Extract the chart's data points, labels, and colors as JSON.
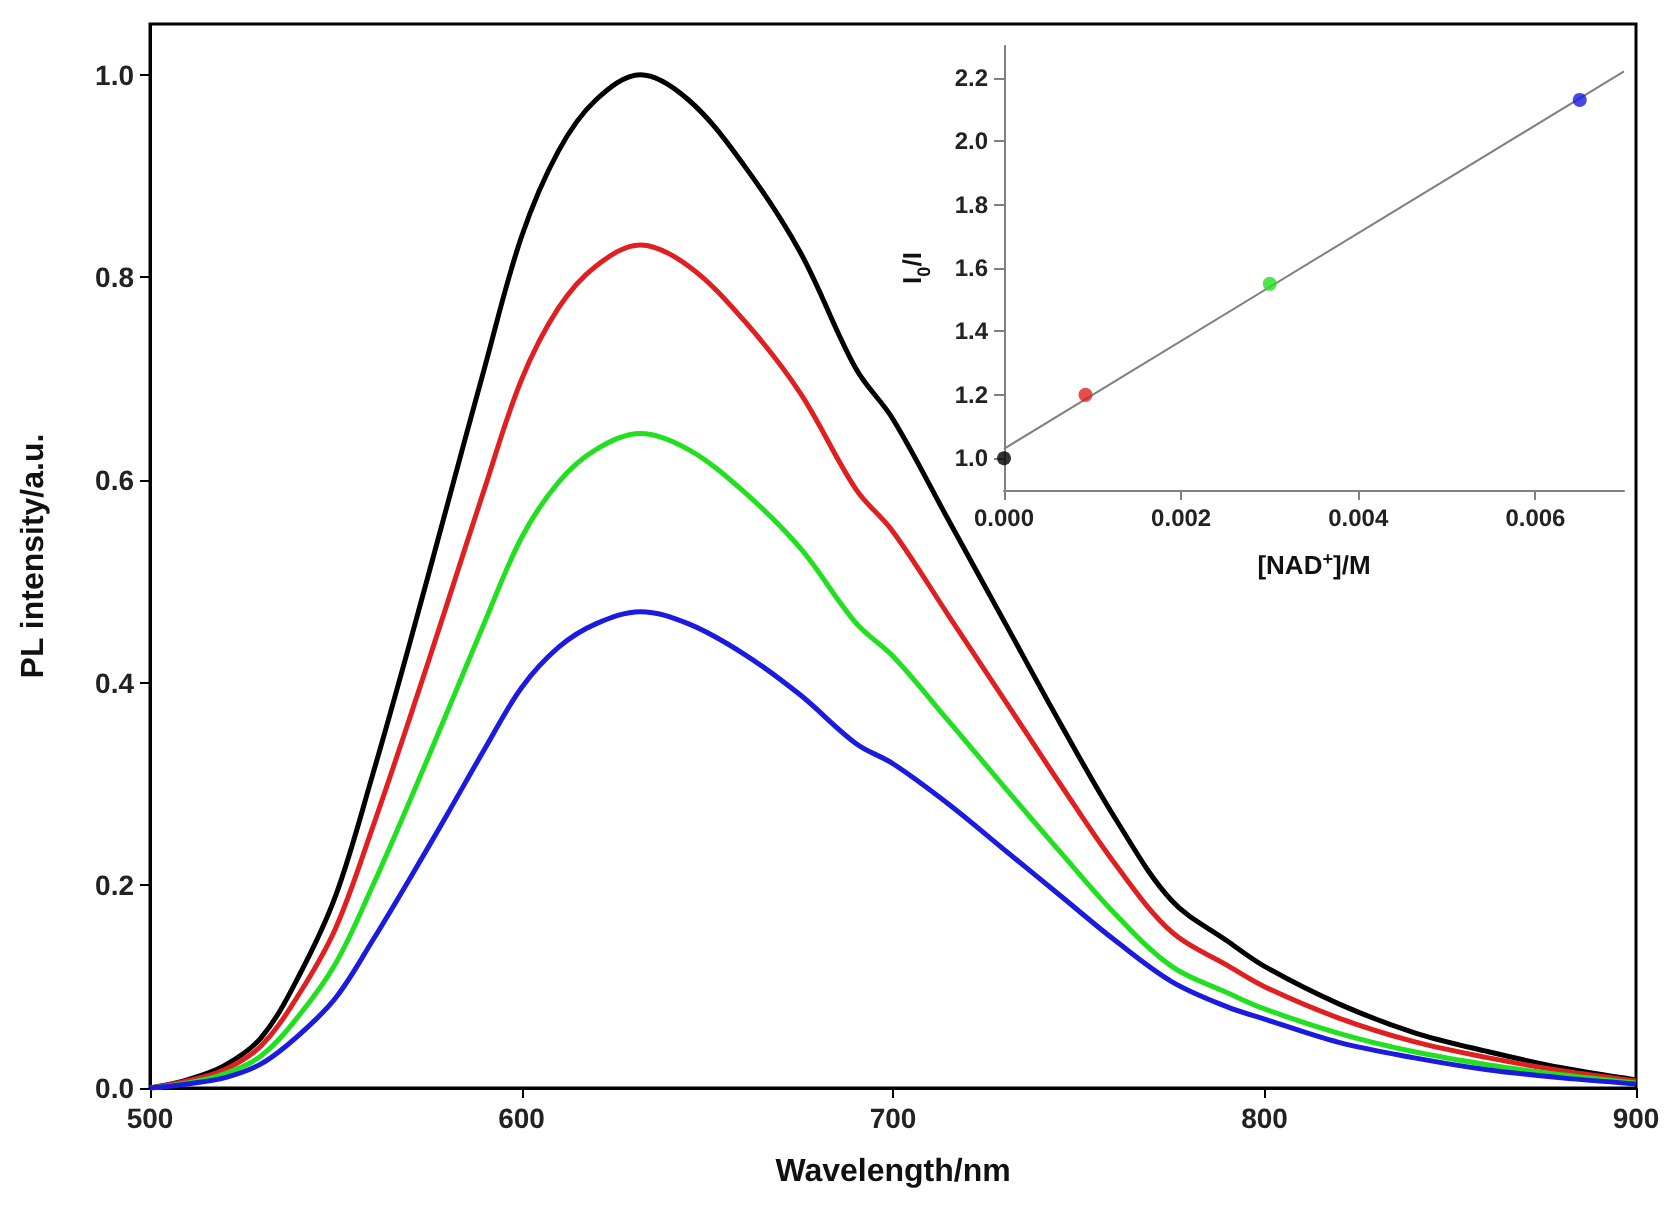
{
  "chart_data": [
    {
      "type": "line",
      "xlabel": "Wavelength/nm",
      "ylabel": "PL intensity/a.u.",
      "marker": "none",
      "x": [
        500,
        510,
        520,
        530,
        540,
        550,
        560,
        570,
        580,
        590,
        600,
        610,
        620,
        632,
        645,
        660,
        675,
        690,
        700,
        715,
        730,
        745,
        760,
        775,
        790,
        800,
        820,
        840,
        860,
        880,
        900
      ],
      "series": [
        {
          "color": "#000000",
          "values": [
            0,
            0.008,
            0.022,
            0.05,
            0.11,
            0.19,
            0.31,
            0.44,
            0.575,
            0.71,
            0.84,
            0.925,
            0.975,
            1.0,
            0.975,
            0.91,
            0.825,
            0.71,
            0.66,
            0.56,
            0.46,
            0.36,
            0.265,
            0.185,
            0.145,
            0.12,
            0.083,
            0.055,
            0.036,
            0.02,
            0.008
          ]
        },
        {
          "color": "#e02020",
          "values": [
            0,
            0.007,
            0.018,
            0.042,
            0.092,
            0.158,
            0.258,
            0.366,
            0.478,
            0.591,
            0.699,
            0.77,
            0.811,
            0.832,
            0.811,
            0.757,
            0.686,
            0.591,
            0.549,
            0.466,
            0.383,
            0.3,
            0.22,
            0.154,
            0.121,
            0.1,
            0.069,
            0.046,
            0.03,
            0.017,
            0.007
          ]
        },
        {
          "color": "#20e020",
          "values": [
            0,
            0.005,
            0.014,
            0.032,
            0.071,
            0.123,
            0.2,
            0.284,
            0.371,
            0.459,
            0.543,
            0.598,
            0.63,
            0.646,
            0.63,
            0.588,
            0.533,
            0.459,
            0.426,
            0.362,
            0.297,
            0.233,
            0.171,
            0.12,
            0.094,
            0.078,
            0.054,
            0.036,
            0.023,
            0.013,
            0.005
          ]
        },
        {
          "color": "#1a1ae0",
          "values": [
            0,
            0.004,
            0.01,
            0.024,
            0.052,
            0.089,
            0.146,
            0.207,
            0.27,
            0.334,
            0.395,
            0.435,
            0.458,
            0.47,
            0.458,
            0.428,
            0.388,
            0.34,
            0.32,
            0.28,
            0.235,
            0.19,
            0.145,
            0.105,
            0.08,
            0.068,
            0.045,
            0.03,
            0.018,
            0.01,
            0.004
          ]
        }
      ],
      "xlim": [
        500,
        900
      ],
      "ylim": [
        0,
        1.05
      ],
      "xticks": [
        500,
        600,
        700,
        800,
        900
      ],
      "yticks": [
        {
          "value": 0,
          "label": "0.0"
        },
        0.2,
        0.4,
        0.6,
        0.8,
        {
          "value": 1,
          "label": "1.0"
        }
      ]
    },
    {
      "type": "scatter",
      "xlabel": "[NAD$^{+}$]/M",
      "ylabel": "I$_{0}$/I",
      "marker": "circle",
      "x": [
        0,
        0.00092,
        0.003,
        0.0065
      ],
      "series": [
        {
          "values": [
            1.0,
            1.2,
            1.55,
            2.13
          ],
          "colors": [
            "#000000",
            "#e02020",
            "#20e020",
            "#1a1ae0"
          ]
        },
        {
          "type": "line",
          "marker": "none",
          "x": [
            0,
            0.007
          ],
          "values": [
            1.03,
            2.22
          ],
          "color": "#808080"
        }
      ],
      "xlim": [
        0,
        0.007
      ],
      "ylim": [
        0.9,
        2.3
      ],
      "xticks": [
        {
          "value": 0,
          "label": "0.000"
        },
        {
          "value": 0.002,
          "label": "0.002"
        },
        {
          "value": 0.004,
          "label": "0.004"
        },
        {
          "value": 0.006,
          "label": "0.006"
        }
      ],
      "yticks": [
        {
          "value": 1,
          "label": "1.0"
        },
        1.2,
        1.4,
        1.6,
        1.8,
        {
          "value": 2,
          "label": "2.0"
        },
        2.2
      ]
    }
  ]
}
